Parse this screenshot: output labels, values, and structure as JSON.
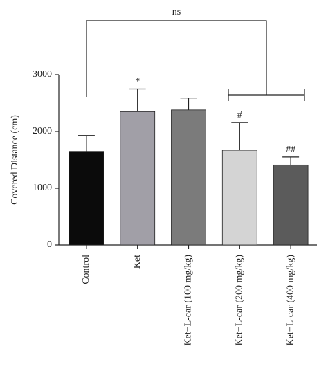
{
  "chart_data": {
    "type": "bar",
    "ylabel": "Covered Distance (cm)",
    "categories": [
      "Control",
      "Ket",
      "Ket+L-car (100 mg/kg)",
      "Ket+L-car (200 mg/kg)",
      "Ket+L-car (400 mg/kg)"
    ],
    "values": [
      1650,
      2350,
      2380,
      1670,
      1410
    ],
    "error": [
      280,
      400,
      210,
      490,
      140
    ],
    "colors": [
      "#0b0b0b",
      "#a19fa7",
      "#7b7b7b",
      "#d4d4d4",
      "#5b5b5b"
    ],
    "significance": [
      null,
      "*",
      null,
      "#",
      "##"
    ],
    "bracket_label": "ns",
    "ylim": [
      0,
      3000
    ],
    "yticks": [
      0,
      1000,
      2000,
      3000
    ]
  }
}
